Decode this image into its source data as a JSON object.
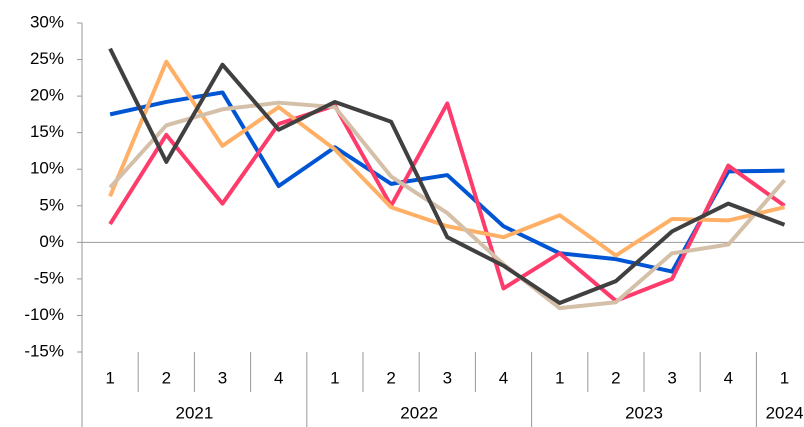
{
  "chart_data": {
    "type": "line",
    "categories": [
      "1",
      "2",
      "3",
      "4",
      "1",
      "2",
      "3",
      "4",
      "1",
      "2",
      "3",
      "4",
      "1"
    ],
    "years": [
      "2021",
      "2022",
      "2023",
      "2024"
    ],
    "ylim": [
      -15,
      30
    ],
    "yticks": [
      {
        "value": -15,
        "label": "-15%"
      },
      {
        "value": -10,
        "label": "-10%"
      },
      {
        "value": -5,
        "label": "-5%"
      },
      {
        "value": 0,
        "label": "0%"
      },
      {
        "value": 5,
        "label": "5%"
      },
      {
        "value": 10,
        "label": "10%"
      },
      {
        "value": 15,
        "label": "15%"
      },
      {
        "value": 20,
        "label": "20%"
      },
      {
        "value": 25,
        "label": "25%"
      },
      {
        "value": 30,
        "label": "30%"
      }
    ],
    "series": [
      {
        "color": "#0055d4",
        "values": [
          17.5,
          19.2,
          20.5,
          7.7,
          13,
          8,
          9.2,
          2.2,
          -1.5,
          -2.3,
          -4,
          9.7,
          9.8
        ]
      },
      {
        "color": "#ff3b6b",
        "values": [
          2.5,
          14.7,
          5.3,
          16.2,
          18.7,
          5,
          19,
          -6.3,
          -1.5,
          -8,
          -5,
          10.5,
          5
        ]
      },
      {
        "color": "#ffb066",
        "values": [
          6.3,
          24.7,
          13.2,
          18.5,
          12.7,
          4.8,
          2.2,
          0.7,
          3.7,
          -1.8,
          3.2,
          3,
          4.8
        ]
      },
      {
        "color": "#d4bfa8",
        "values": [
          7.5,
          16,
          18.2,
          19.1,
          18.5,
          9,
          4,
          -3,
          -9,
          -8.2,
          -1.5,
          -0.3,
          8.5
        ]
      },
      {
        "color": "#404040",
        "values": [
          26.5,
          11,
          24.3,
          15.4,
          19.2,
          16.5,
          0.7,
          -3.2,
          -8.3,
          -5.3,
          1.5,
          5.3,
          2.4
        ]
      }
    ]
  }
}
